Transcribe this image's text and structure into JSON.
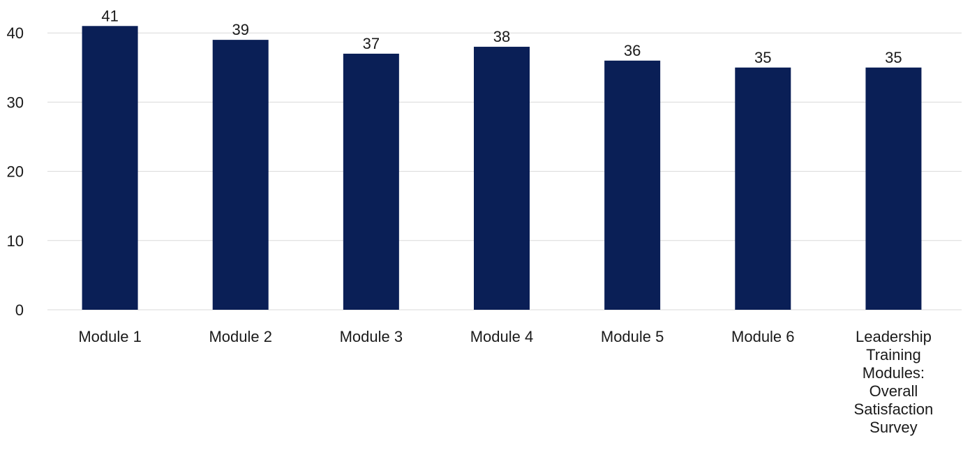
{
  "chart_data": {
    "type": "bar",
    "categories": [
      "Module 1",
      "Module 2",
      "Module 3",
      "Module 4",
      "Module 5",
      "Module 6",
      "Leadership Training Modules: Overall Satisfaction Survey"
    ],
    "category_lines": [
      [
        "Module 1"
      ],
      [
        "Module 2"
      ],
      [
        "Module 3"
      ],
      [
        "Module 4"
      ],
      [
        "Module 5"
      ],
      [
        "Module 6"
      ],
      [
        "Leadership",
        "Training",
        "Modules:",
        "Overall",
        "Satisfaction",
        "Survey"
      ]
    ],
    "values": [
      41,
      39,
      37,
      38,
      36,
      35,
      35
    ],
    "yticks": [
      0,
      10,
      20,
      30,
      40
    ],
    "ylim": [
      0,
      41
    ],
    "grid": true,
    "legend": "none",
    "bar_color": "#0a1f56"
  }
}
